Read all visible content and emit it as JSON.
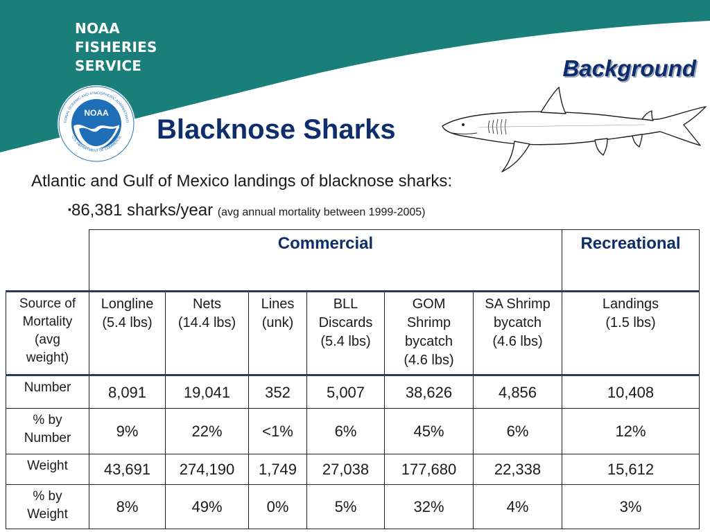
{
  "brand": {
    "line1": "NOAA",
    "line2": "FISHERIES",
    "line3": "SERVICE"
  },
  "logo": {
    "center_text": "NOAA",
    "ring_text": "NATIONAL OCEANIC AND ATMOSPHERIC ADMINISTRATION",
    "ring_text_bottom": "U.S. DEPARTMENT OF COMMERCE"
  },
  "section_title": "Background",
  "page_title": "Blacknose Sharks",
  "intro": "Atlantic and Gulf of Mexico landings of blacknose sharks:",
  "bullet": {
    "marker": "▪",
    "main": "86,381 sharks/year",
    "note": "(avg annual mortality between 1999-2005)"
  },
  "table": {
    "group_headers": {
      "commercial": "Commercial",
      "recreational": "Recreational"
    },
    "row_label_header": [
      "Source of",
      "Mortality",
      "(avg",
      "weight)"
    ],
    "columns": [
      {
        "lines": [
          "Longline",
          "(5.4 lbs)"
        ]
      },
      {
        "lines": [
          "Nets",
          "(14.4 lbs)"
        ]
      },
      {
        "lines": [
          "Lines",
          "(unk)"
        ]
      },
      {
        "lines": [
          "BLL",
          "Discards",
          "(5.4 lbs)"
        ]
      },
      {
        "lines": [
          "GOM",
          "Shrimp",
          "bycatch",
          " (4.6 lbs)"
        ]
      },
      {
        "lines": [
          "SA Shrimp",
          "bycatch",
          "(4.6 lbs)"
        ]
      },
      {
        "lines": [
          "Landings",
          "(1.5 lbs)"
        ]
      }
    ],
    "rows": [
      {
        "label": [
          "Number"
        ],
        "values": [
          "8,091",
          "19,041",
          "352",
          "5,007",
          "38,626",
          "4,856",
          "10,408"
        ]
      },
      {
        "label": [
          "% by",
          "Number"
        ],
        "values": [
          "9%",
          "22%",
          "<1%",
          "6%",
          "45%",
          "6%",
          "12%"
        ]
      },
      {
        "label": [
          "Weight"
        ],
        "values": [
          "43,691",
          "274,190",
          "1,749",
          "27,038",
          "177,680",
          "22,338",
          "15,612"
        ]
      },
      {
        "label": [
          "% by",
          "Weight"
        ],
        "values": [
          "8%",
          "49%",
          "0%",
          "5%",
          "32%",
          "4%",
          "3%"
        ]
      }
    ]
  },
  "colors": {
    "banner": "#1a7f7a",
    "title": "#0e2d6b",
    "noaa_blue": "#1f6fb8"
  }
}
